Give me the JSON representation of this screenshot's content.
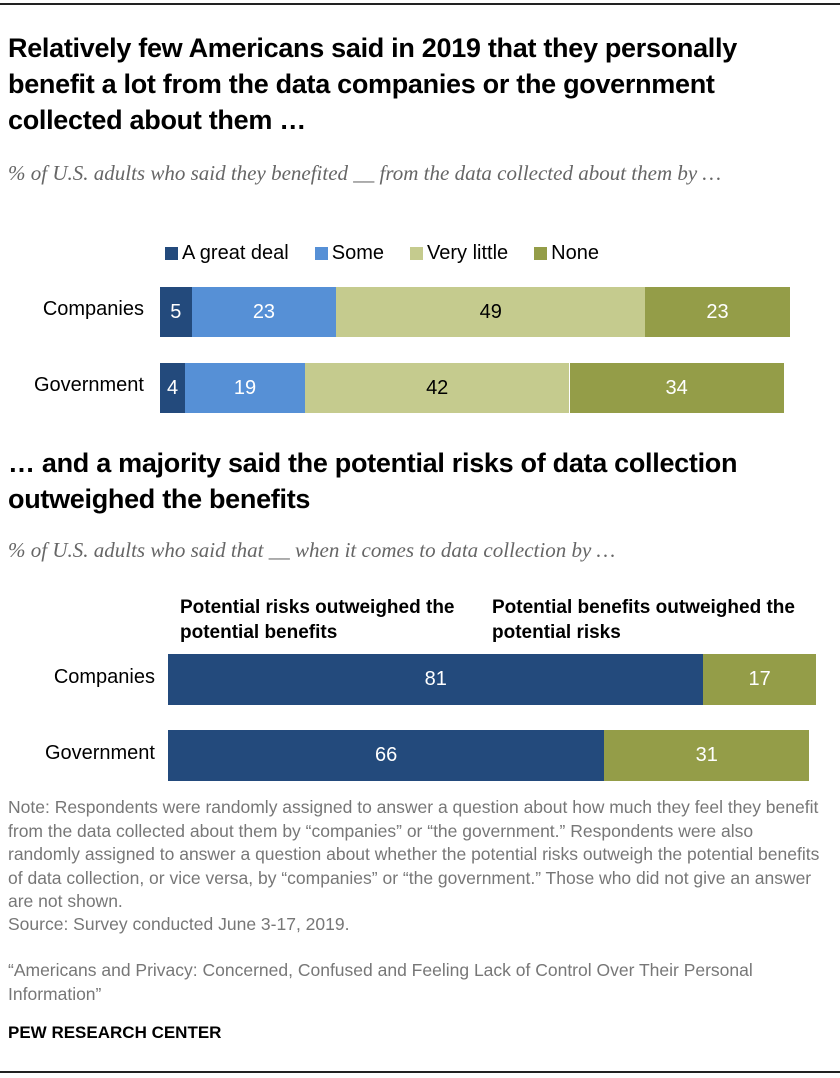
{
  "chart_data": [
    {
      "type": "bar",
      "orientation": "horizontal",
      "stacked": true,
      "title": "Relatively few Americans said in 2019 that they personally benefit a lot from the data companies or the government collected about them …",
      "subtitle": "% of U.S. adults who said they benefited __ from the data collected about them by …",
      "categories": [
        "Companies",
        "Government"
      ],
      "legend_placement": "top",
      "series": [
        {
          "name": "A great deal",
          "color": "#234a7c",
          "label_color": "#ffffff",
          "values": [
            5,
            4
          ]
        },
        {
          "name": "Some",
          "color": "#5690d6",
          "label_color": "#ffffff",
          "values": [
            23,
            19
          ]
        },
        {
          "name": "Very little",
          "color": "#c5cb8e",
          "label_color": "#000000",
          "values": [
            49,
            42
          ]
        },
        {
          "name": "None",
          "color": "#949d48",
          "label_color": "#ffffff",
          "values": [
            23,
            34
          ]
        }
      ]
    },
    {
      "type": "bar",
      "orientation": "horizontal",
      "stacked": true,
      "title": "… and a majority said the potential risks of data collection outweighed the benefits",
      "subtitle": "% of U.S. adults who said that __ when it comes to data collection by …",
      "categories": [
        "Companies",
        "Government"
      ],
      "legend_placement": "top",
      "series": [
        {
          "name": "Potential risks outweighed the potential benefits",
          "color": "#234a7c",
          "label_color": "#ffffff",
          "values": [
            81,
            66
          ]
        },
        {
          "name": "Potential benefits outweighed the potential risks",
          "color": "#949d48",
          "label_color": "#ffffff",
          "values": [
            17,
            31
          ]
        }
      ]
    }
  ],
  "notes": {
    "note": "Note: Respondents were randomly assigned to answer a question about how much they feel they benefit from the data collected about them by “companies” or “the government.” Respondents were also randomly assigned to answer a question about whether the potential risks outweigh the potential benefits of data collection, or vice versa, by “companies” or “the government.” Those who did not give an answer are not shown.",
    "source": "Source: Survey conducted June 3-17, 2019.",
    "report": "“Americans and Privacy: Concerned, Confused and Feeling Lack of Control Over Their Personal Information”",
    "brand": "PEW RESEARCH CENTER"
  }
}
